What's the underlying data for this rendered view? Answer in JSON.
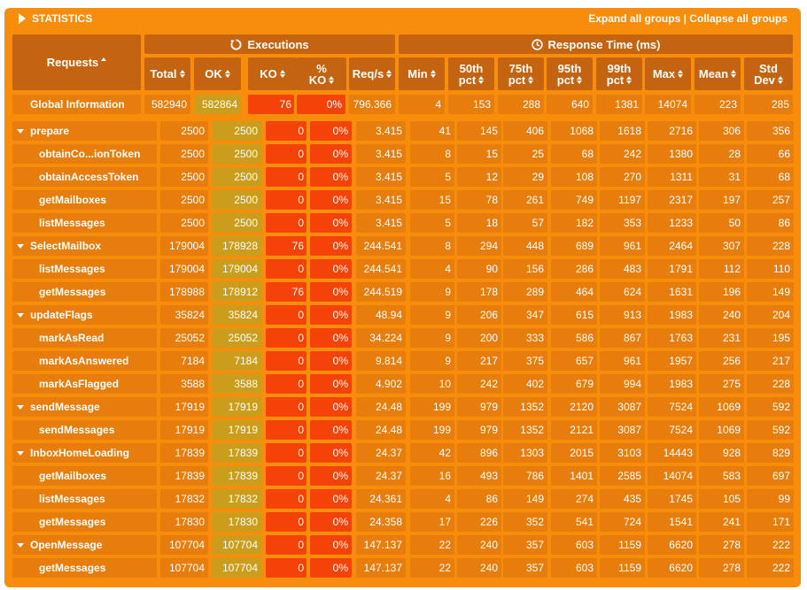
{
  "header": {
    "title": "STATISTICS",
    "expand_all": "Expand all groups",
    "separator": " | ",
    "collapse_all": "Collapse all groups"
  },
  "columns": {
    "requests": "Requests",
    "executions_group": "Executions",
    "response_group": "Response Time (ms)",
    "total": "Total",
    "ok": "OK",
    "ko": "KO",
    "ko_pct_1": "%",
    "ko_pct_2": "KO",
    "reqs": "Req/s",
    "min": "Min",
    "p50_1": "50th",
    "p50_2": "pct",
    "p75_1": "75th",
    "p75_2": "pct",
    "p95_1": "95th",
    "p95_2": "pct",
    "p99_1": "99th",
    "p99_2": "pct",
    "max": "Max",
    "mean": "Mean",
    "std_1": "Std",
    "std_2": "Dev"
  },
  "global": {
    "name": "Global Information",
    "values": [
      "582940",
      "582864",
      "76",
      "0%",
      "796.366",
      "4",
      "153",
      "288",
      "640",
      "1381",
      "14074",
      "223",
      "285"
    ]
  },
  "rows": [
    {
      "type": "group",
      "name": "prepare",
      "values": [
        "2500",
        "2500",
        "0",
        "0%",
        "3.415",
        "41",
        "145",
        "406",
        "1068",
        "1618",
        "2716",
        "306",
        "356"
      ]
    },
    {
      "type": "child",
      "name": "obtainCo...ionToken",
      "values": [
        "2500",
        "2500",
        "0",
        "0%",
        "3.415",
        "8",
        "15",
        "25",
        "68",
        "242",
        "1380",
        "28",
        "66"
      ]
    },
    {
      "type": "child",
      "name": "obtainAccessToken",
      "values": [
        "2500",
        "2500",
        "0",
        "0%",
        "3.415",
        "5",
        "12",
        "29",
        "108",
        "270",
        "1311",
        "31",
        "68"
      ]
    },
    {
      "type": "child",
      "name": "getMailboxes",
      "values": [
        "2500",
        "2500",
        "0",
        "0%",
        "3.415",
        "15",
        "78",
        "261",
        "749",
        "1197",
        "2317",
        "197",
        "257"
      ]
    },
    {
      "type": "child",
      "name": "listMessages",
      "values": [
        "2500",
        "2500",
        "0",
        "0%",
        "3.415",
        "5",
        "18",
        "57",
        "182",
        "353",
        "1233",
        "50",
        "86"
      ]
    },
    {
      "type": "group",
      "name": "SelectMailbox",
      "values": [
        "179004",
        "178928",
        "76",
        "0%",
        "244.541",
        "8",
        "294",
        "448",
        "689",
        "961",
        "2464",
        "307",
        "228"
      ]
    },
    {
      "type": "child",
      "name": "listMessages",
      "values": [
        "179004",
        "179004",
        "0",
        "0%",
        "244.541",
        "4",
        "90",
        "156",
        "286",
        "483",
        "1791",
        "112",
        "110"
      ]
    },
    {
      "type": "child",
      "name": "getMessages",
      "values": [
        "178988",
        "178912",
        "76",
        "0%",
        "244.519",
        "9",
        "178",
        "289",
        "464",
        "624",
        "1631",
        "196",
        "149"
      ]
    },
    {
      "type": "group",
      "name": "updateFlags",
      "values": [
        "35824",
        "35824",
        "0",
        "0%",
        "48.94",
        "9",
        "206",
        "347",
        "615",
        "913",
        "1983",
        "240",
        "204"
      ]
    },
    {
      "type": "child",
      "name": "markAsRead",
      "values": [
        "25052",
        "25052",
        "0",
        "0%",
        "34.224",
        "9",
        "200",
        "333",
        "586",
        "867",
        "1763",
        "231",
        "195"
      ]
    },
    {
      "type": "child",
      "name": "markAsAnswered",
      "values": [
        "7184",
        "7184",
        "0",
        "0%",
        "9.814",
        "9",
        "217",
        "375",
        "657",
        "961",
        "1957",
        "256",
        "217"
      ]
    },
    {
      "type": "child",
      "name": "markAsFlagged",
      "values": [
        "3588",
        "3588",
        "0",
        "0%",
        "4.902",
        "10",
        "242",
        "402",
        "679",
        "994",
        "1983",
        "275",
        "228"
      ]
    },
    {
      "type": "group",
      "name": "sendMessage",
      "values": [
        "17919",
        "17919",
        "0",
        "0%",
        "24.48",
        "199",
        "979",
        "1352",
        "2120",
        "3087",
        "7524",
        "1069",
        "592"
      ]
    },
    {
      "type": "child",
      "name": "sendMessages",
      "values": [
        "17919",
        "17919",
        "0",
        "0%",
        "24.48",
        "199",
        "979",
        "1352",
        "2121",
        "3087",
        "7524",
        "1069",
        "592"
      ]
    },
    {
      "type": "group",
      "name": "InboxHomeLoading",
      "values": [
        "17839",
        "17839",
        "0",
        "0%",
        "24.37",
        "42",
        "896",
        "1303",
        "2015",
        "3103",
        "14443",
        "928",
        "829"
      ]
    },
    {
      "type": "child",
      "name": "getMailboxes",
      "values": [
        "17839",
        "17839",
        "0",
        "0%",
        "24.37",
        "16",
        "493",
        "786",
        "1401",
        "2585",
        "14074",
        "583",
        "697"
      ]
    },
    {
      "type": "child",
      "name": "listMessages",
      "values": [
        "17832",
        "17832",
        "0",
        "0%",
        "24.361",
        "4",
        "86",
        "149",
        "274",
        "435",
        "1745",
        "105",
        "99"
      ]
    },
    {
      "type": "child",
      "name": "getMessages",
      "values": [
        "17830",
        "17830",
        "0",
        "0%",
        "24.358",
        "17",
        "226",
        "352",
        "541",
        "724",
        "1541",
        "241",
        "171"
      ]
    },
    {
      "type": "group",
      "name": "OpenMessage",
      "values": [
        "107704",
        "107704",
        "0",
        "0%",
        "147.137",
        "22",
        "240",
        "357",
        "603",
        "1159",
        "6620",
        "278",
        "222"
      ]
    },
    {
      "type": "child",
      "name": "getMessages",
      "values": [
        "107704",
        "107704",
        "0",
        "0%",
        "147.137",
        "22",
        "240",
        "357",
        "603",
        "1159",
        "6620",
        "278",
        "222"
      ]
    }
  ]
}
